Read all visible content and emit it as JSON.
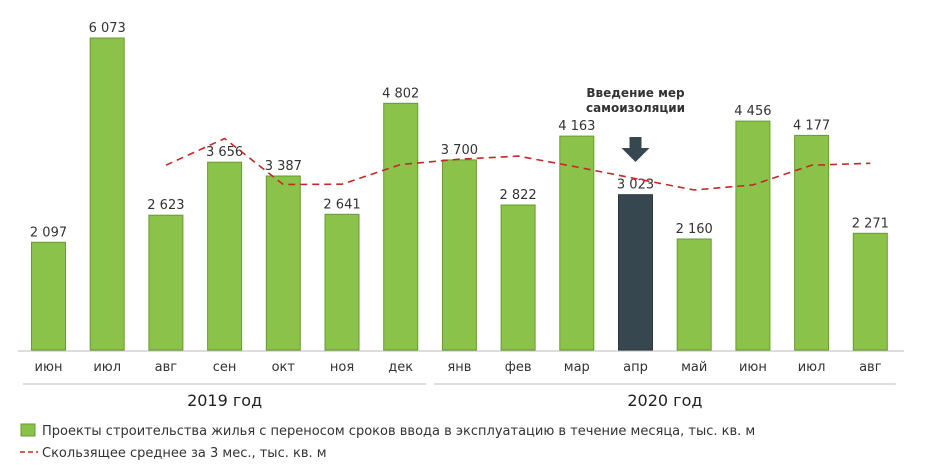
{
  "chart_data": {
    "type": "bar",
    "categories": [
      "июн",
      "июл",
      "авг",
      "сен",
      "окт",
      "ноя",
      "дек",
      "янв",
      "фев",
      "мар",
      "апр",
      "май",
      "июн",
      "июл",
      "авг"
    ],
    "values": [
      2097,
      6073,
      2623,
      3656,
      3387,
      2641,
      4802,
      3700,
      2822,
      4163,
      3023,
      2160,
      4456,
      4177,
      2271
    ],
    "value_labels": [
      "2 097",
      "6 073",
      "2 623",
      "3 656",
      "3 387",
      "2 641",
      "4 802",
      "3 700",
      "2 822",
      "4 163",
      "3 023",
      "2 160",
      "4 456",
      "4 177",
      "2 271"
    ],
    "highlight_index": 10,
    "moving_average": [
      null,
      null,
      3598,
      4117,
      3222,
      3228,
      3610,
      3714,
      3775,
      3562,
      3336,
      3115,
      3213,
      3598,
      3635
    ],
    "ylim": [
      0,
      6500
    ],
    "years": [
      {
        "label": "2019 год",
        "from": 0,
        "to": 6
      },
      {
        "label": "2020 год",
        "from": 7,
        "to": 14
      }
    ],
    "annotation": {
      "lines": [
        "Введение мер",
        "самоизоляции"
      ],
      "index": 10
    },
    "legend": [
      {
        "kind": "bar",
        "label": "Проекты строительства жилья с переносом сроков ввода в эксплуатацию в течение месяца, тыс. кв. м"
      },
      {
        "kind": "dashed-line",
        "label": "Скользящее среднее за 3 мес., тыс. кв. м"
      }
    ],
    "colors": {
      "bar": "#8bc34a",
      "bar_stroke": "#6a9a2e",
      "highlight": "#37474f",
      "line": "#c62828",
      "axis": "#bbbbbb"
    }
  }
}
